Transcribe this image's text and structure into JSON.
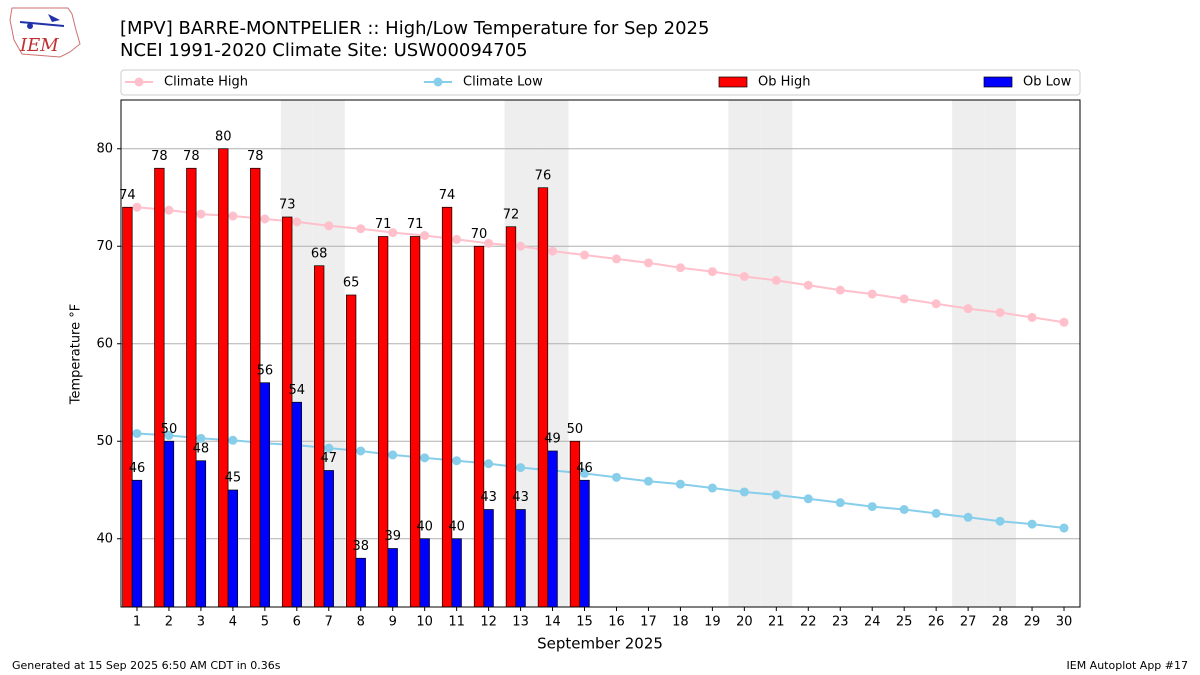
{
  "chart_data": {
    "type": "bar",
    "title": "[MPV] BARRE-MONTPELIER :: High/Low Temperature for Sep 2025",
    "subtitle": "NCEI 1991-2020 Climate Site: USW00094705",
    "logo_text": "IEM",
    "x_label": "September 2025",
    "y_label": "Temperature °F",
    "footer_left": "Generated at 15 Sep 2025 6:50 AM CDT in 0.36s",
    "footer_right": "IEM Autoplot App #17",
    "x": [
      1,
      2,
      3,
      4,
      5,
      6,
      7,
      8,
      9,
      10,
      11,
      12,
      13,
      14,
      15,
      16,
      17,
      18,
      19,
      20,
      21,
      22,
      23,
      24,
      25,
      26,
      27,
      28,
      29,
      30
    ],
    "xlim": [
      0.5,
      30.5
    ],
    "xticks": [
      1,
      2,
      3,
      4,
      5,
      6,
      7,
      8,
      9,
      10,
      11,
      12,
      13,
      14,
      15,
      16,
      17,
      18,
      19,
      20,
      21,
      22,
      23,
      24,
      25,
      26,
      27,
      28,
      29,
      30
    ],
    "ylim": [
      33,
      85
    ],
    "yticks": [
      40,
      50,
      60,
      70,
      80
    ],
    "grid": true,
    "shaded_days": [
      6,
      7,
      13,
      14,
      20,
      21,
      27,
      28
    ],
    "series": [
      {
        "name": "Climate High",
        "type": "line",
        "color": "#ffc0cb",
        "values": [
          74.0,
          73.7,
          73.3,
          73.1,
          72.8,
          72.5,
          72.1,
          71.8,
          71.4,
          71.1,
          70.7,
          70.3,
          70.0,
          69.5,
          69.1,
          68.7,
          68.3,
          67.8,
          67.4,
          66.9,
          66.5,
          66.0,
          65.5,
          65.1,
          64.6,
          64.1,
          63.6,
          63.2,
          62.7,
          62.2
        ]
      },
      {
        "name": "Climate Low",
        "type": "line",
        "color": "#87ceeb",
        "values": [
          50.8,
          50.6,
          50.3,
          50.1,
          49.8,
          49.6,
          49.3,
          49.0,
          48.6,
          48.3,
          48.0,
          47.7,
          47.3,
          47.0,
          46.7,
          46.3,
          45.9,
          45.6,
          45.2,
          44.8,
          44.5,
          44.1,
          43.7,
          43.3,
          43.0,
          42.6,
          42.2,
          41.8,
          41.5,
          41.1
        ]
      },
      {
        "name": "Ob High",
        "type": "bar",
        "color": "#ff0000",
        "values": [
          74,
          78,
          78,
          80,
          78,
          73,
          68,
          65,
          71,
          71,
          74,
          70,
          72,
          76,
          50,
          null,
          null,
          null,
          null,
          null,
          null,
          null,
          null,
          null,
          null,
          null,
          null,
          null,
          null,
          null
        ]
      },
      {
        "name": "Ob Low",
        "type": "bar",
        "color": "#0000ff",
        "values": [
          46,
          50,
          48,
          45,
          56,
          54,
          47,
          38,
          39,
          40,
          40,
          43,
          43,
          49,
          46,
          null,
          null,
          null,
          null,
          null,
          null,
          null,
          null,
          null,
          null,
          null,
          null,
          null,
          null,
          null
        ]
      }
    ]
  }
}
